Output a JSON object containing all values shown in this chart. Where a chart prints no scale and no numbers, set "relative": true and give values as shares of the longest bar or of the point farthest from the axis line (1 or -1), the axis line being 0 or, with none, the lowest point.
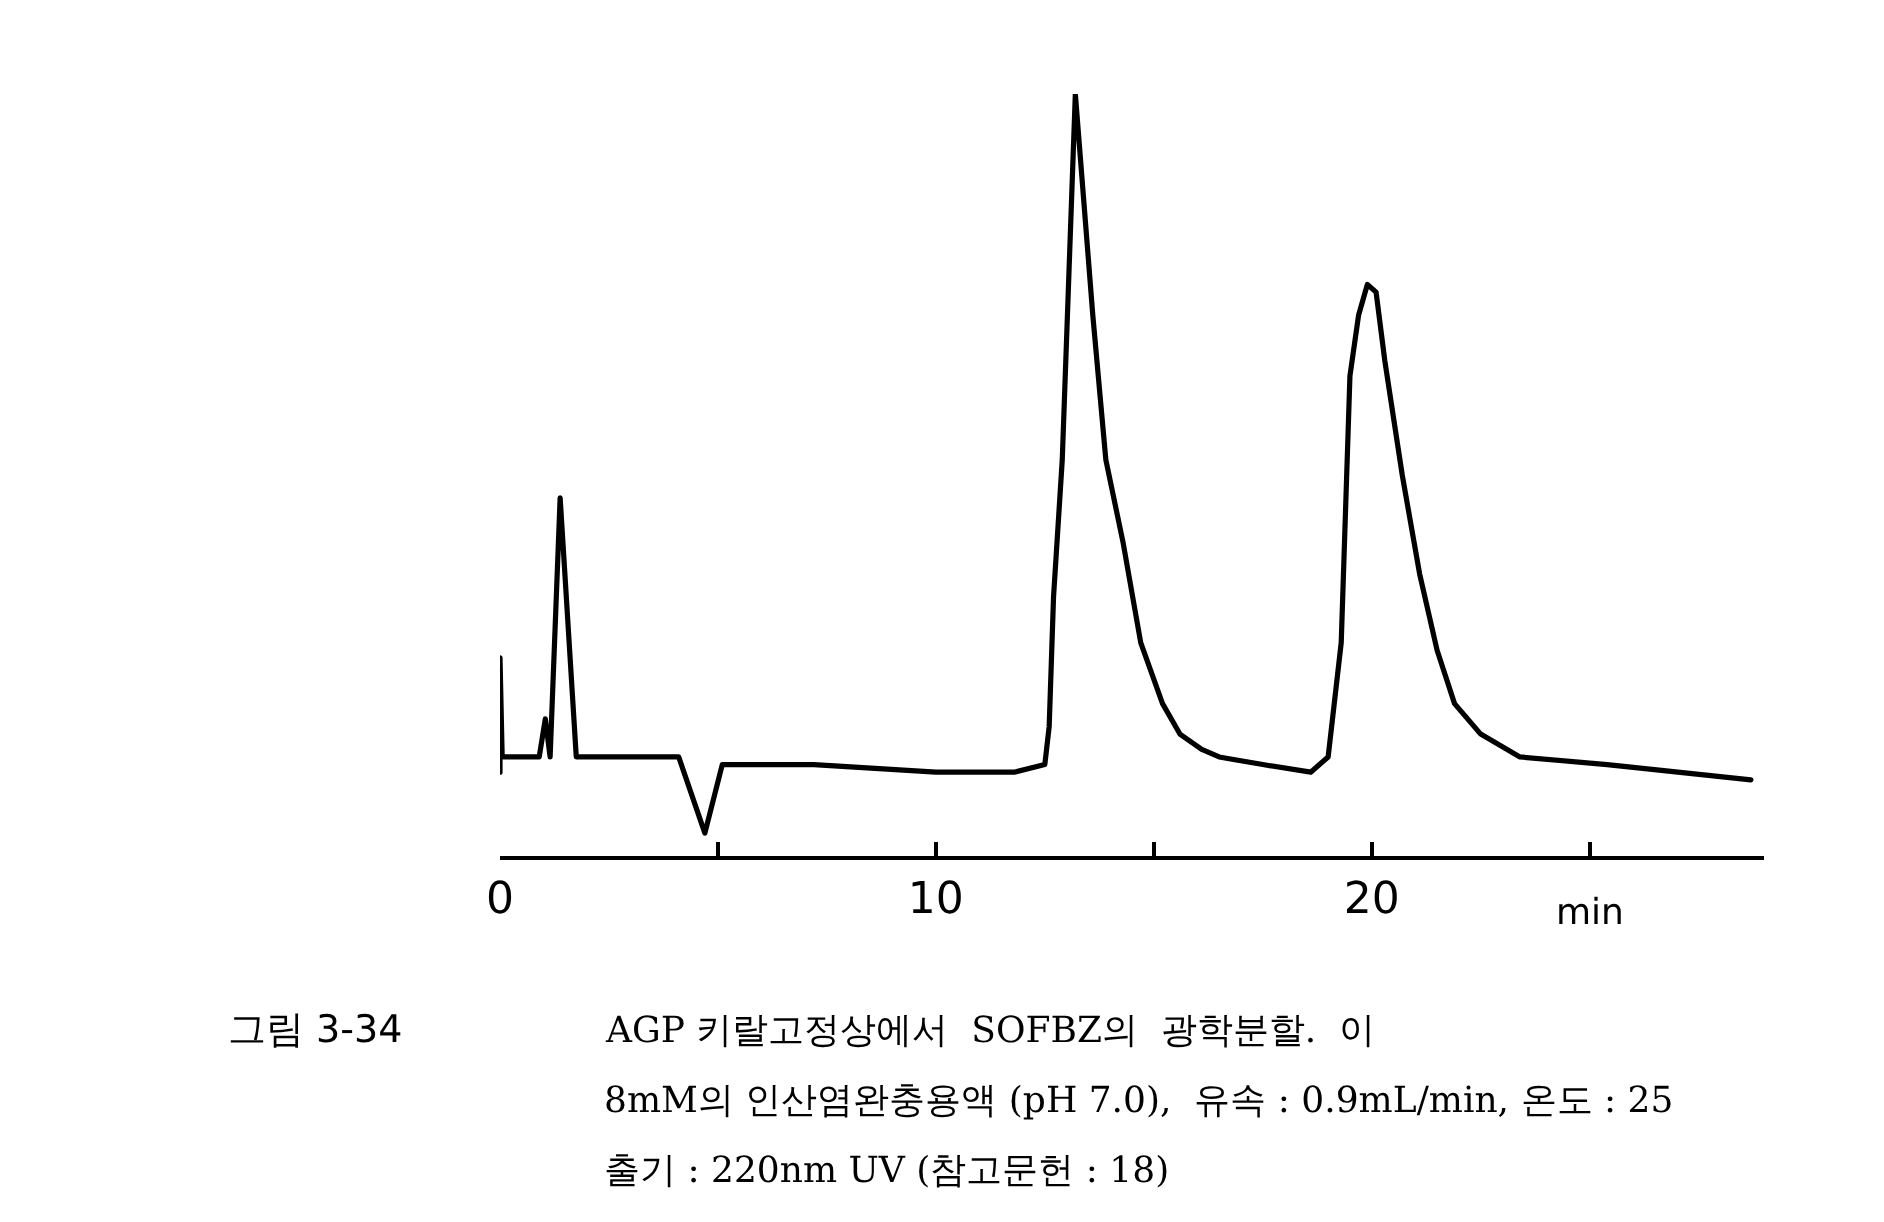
{
  "chart_data": {
    "type": "line",
    "relative": true,
    "xlabel": "min",
    "annotations": [
      "그림 3-34",
      "AGP 키랄고정상에서  SOFBZ의  광학분할.  이",
      "8mM의 인산염완충용액 (pH 7.0),  유속 : 0.9mL/min, 온도 : 25",
      "출기 : 220nm UV (참고문헌 : 18)"
    ],
    "xlim": [
      0,
      29
    ],
    "xticks": [
      0,
      {
        "value": 5,
        "label": null
      },
      10,
      {
        "value": 15,
        "label": null
      },
      20,
      {
        "value": 25,
        "label": null
      }
    ],
    "tick_labels": "x",
    "line_style": "solid",
    "series": [
      {
        "color": "#000000",
        "x": [
          0,
          0,
          0.05,
          0.9,
          1.04,
          1.15,
          1.38,
          1.75,
          4.1,
          4.7,
          5.1,
          6.3,
          7.2,
          10.0,
          11.8,
          12.5,
          12.6,
          12.7,
          12.9,
          13.2,
          13.6,
          13.9,
          14.3,
          14.7,
          15.2,
          15.6,
          16.1,
          16.5,
          17.5,
          18.6,
          19.0,
          19.3,
          19.5,
          19.7,
          19.9,
          20.1,
          20.3,
          20.7,
          21.1,
          21.5,
          21.9,
          22.5,
          23.4,
          25.4,
          28.7
        ],
        "values": [
          0.11,
          0.26,
          0.13,
          0.13,
          0.18,
          0.13,
          0.47,
          0.13,
          0.13,
          0.03,
          0.12,
          0.12,
          0.12,
          0.11,
          0.11,
          0.12,
          0.17,
          0.34,
          0.52,
          1.0,
          0.71,
          0.52,
          0.41,
          0.28,
          0.2,
          0.16,
          0.14,
          0.13,
          0.12,
          0.11,
          0.13,
          0.28,
          0.63,
          0.71,
          0.75,
          0.74,
          0.65,
          0.5,
          0.37,
          0.27,
          0.2,
          0.16,
          0.13,
          0.12,
          0.1
        ]
      }
    ]
  }
}
